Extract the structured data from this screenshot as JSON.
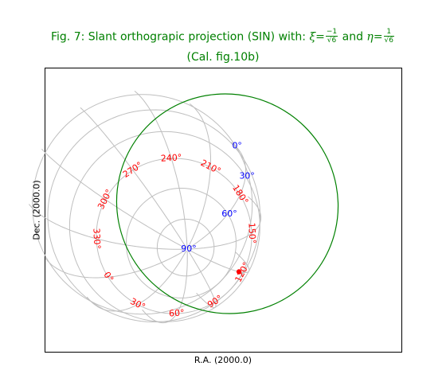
{
  "chart_data": {
    "type": "sky-projection",
    "title": {
      "prefix": "Fig. 7: Slant orthograpic projection (SIN) with: ",
      "xi_symbol": "ξ",
      "xi_num": "−1",
      "xi_den": "√6",
      "and_text": " and ",
      "eta_symbol": "η",
      "eta_num": "1",
      "eta_den": "√6",
      "line2": "(Cal. fig.10b)"
    },
    "xlabel": "R.A. (2000.0)",
    "ylabel": "Dec. (2000.0)",
    "projection": "SIN",
    "xi": -0.408,
    "eta": 0.408,
    "ra_labels": [
      "0",
      "30",
      "60",
      "90",
      "120",
      "150",
      "180",
      "210",
      "240",
      "270",
      "300",
      "330"
    ],
    "ra_label_values": [
      0,
      30,
      60,
      90,
      120,
      150,
      180,
      210,
      240,
      270,
      300,
      330
    ],
    "dec_labels": [
      "0",
      "30",
      "60",
      "90"
    ],
    "dec_label_values": [
      0,
      30,
      60,
      90
    ],
    "colors": {
      "border": "#008000",
      "grid": "#bfbfbf",
      "ra_labels": "#ff0000",
      "dec_labels": "#0000ff",
      "marker": "#ff0000",
      "title": "#008000"
    }
  }
}
